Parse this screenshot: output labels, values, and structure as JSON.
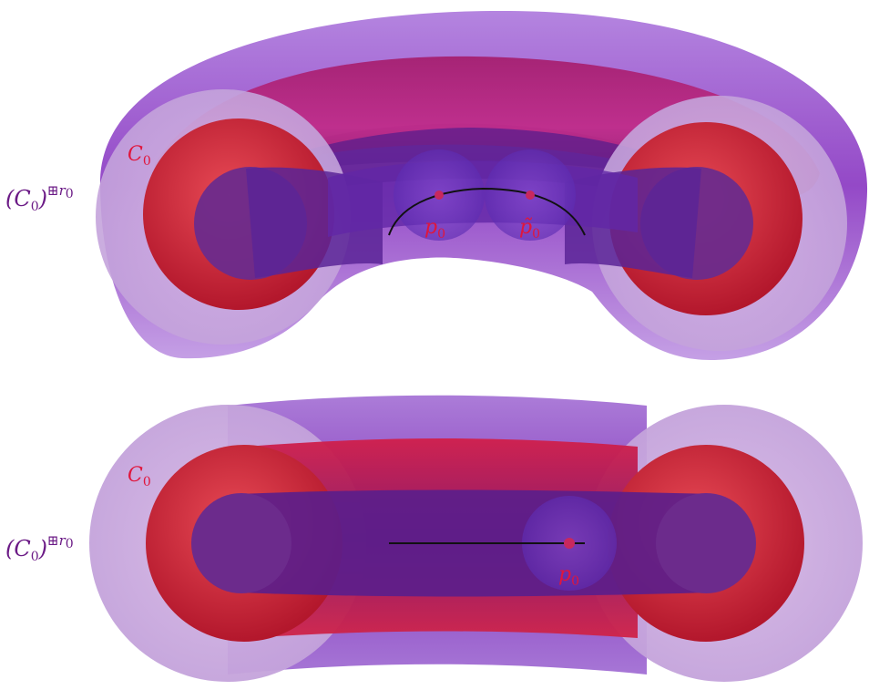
{
  "figure": {
    "top_panel": {
      "outer_label_open": "(C",
      "outer_label_sub": "0",
      "outer_label_close": ")",
      "outer_label_sup": "⊞r",
      "outer_label_sup_sub": "0",
      "curve_label": "C",
      "curve_label_sub": "0",
      "point_label": "p",
      "point_label_sub": "0",
      "point2_label": "p̃",
      "point2_label_sub": "0"
    },
    "bottom_panel": {
      "outer_label_open": "(C",
      "outer_label_sub": "0",
      "outer_label_close": ")",
      "outer_label_sup": "⊞r",
      "outer_label_sup_sub": "0",
      "curve_label": "C",
      "curve_label_sub": "0",
      "point_label": "p",
      "point_label_sub": "0"
    },
    "colors": {
      "outer_shell": "#a66fd6",
      "red_tube": "#d8263a",
      "inner_core": "#5a1e8c",
      "label_purple": "#6b1a86",
      "label_red": "#e0163c"
    }
  }
}
